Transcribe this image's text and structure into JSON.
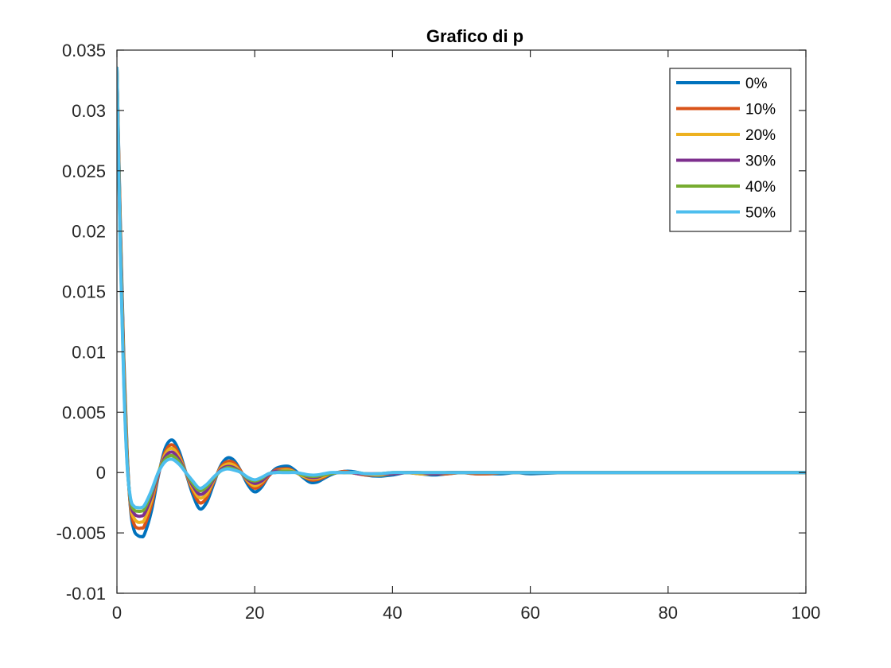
{
  "chart_data": {
    "type": "line",
    "title": "Grafico di p",
    "xlabel": "",
    "ylabel": "",
    "xlim": [
      0,
      100
    ],
    "ylim": [
      -0.01,
      0.035
    ],
    "x_ticks": [
      0,
      20,
      40,
      60,
      80,
      100
    ],
    "x_tick_labels": [
      "0",
      "20",
      "40",
      "60",
      "80",
      "100"
    ],
    "y_ticks": [
      -0.01,
      -0.005,
      0,
      0.005,
      0.01,
      0.015,
      0.02,
      0.025,
      0.03,
      0.035
    ],
    "y_tick_labels": [
      "-0.01",
      "-0.005",
      "0",
      "0.005",
      "0.01",
      "0.015",
      "0.02",
      "0.025",
      "0.03",
      "0.035"
    ],
    "grid": false,
    "legend_position": "top-right",
    "series": [
      {
        "name": "0%",
        "color": "#0072BD",
        "x": [
          0,
          0.5,
          1,
          1.5,
          2,
          2.5,
          3,
          3.5,
          4,
          5,
          6,
          7,
          8,
          9,
          10,
          11,
          12,
          13,
          14,
          15,
          16,
          17,
          18,
          19,
          20,
          21,
          22,
          23,
          24,
          25,
          26,
          27,
          28,
          29,
          30,
          31,
          32,
          33,
          34,
          35,
          36,
          38,
          40,
          42,
          44,
          46,
          48,
          50,
          52,
          54,
          56,
          58,
          60,
          65,
          70,
          75,
          80,
          85,
          90,
          95,
          100
        ],
        "values": [
          0.0335,
          0.0205,
          0.0095,
          0.0015,
          -0.0032,
          -0.0048,
          -0.0052,
          -0.0053,
          -0.0051,
          -0.0032,
          -0.0003,
          0.002,
          0.0027,
          0.0018,
          0.0,
          -0.0018,
          -0.003,
          -0.0025,
          -0.001,
          0.0005,
          0.0012,
          0.001,
          0.0001,
          -0.001,
          -0.0016,
          -0.0012,
          -0.0003,
          0.0003,
          0.0005,
          0.0005,
          0.0001,
          -0.0004,
          -0.0008,
          -0.0008,
          -0.0005,
          -0.0002,
          0.0,
          0.0001,
          0.0001,
          0.0,
          -0.0002,
          -0.0003,
          -0.0002,
          0.0,
          -0.0001,
          -0.0002,
          -0.0001,
          0.0,
          -0.0001,
          -0.0001,
          -0.0001,
          0.0,
          -0.0001,
          0.0,
          0.0,
          0.0,
          0.0,
          0.0,
          0.0,
          0.0,
          0.0
        ]
      },
      {
        "name": "10%",
        "color": "#D95319",
        "x": [
          0,
          0.5,
          1,
          1.5,
          2,
          2.5,
          3,
          3.5,
          4,
          5,
          6,
          7,
          8,
          9,
          10,
          11,
          12,
          13,
          14,
          15,
          16,
          17,
          18,
          19,
          20,
          21,
          22,
          23,
          24,
          25,
          26,
          27,
          28,
          29,
          30,
          31,
          32,
          33,
          34,
          35,
          36,
          38,
          40,
          42,
          44,
          46,
          48,
          50,
          52,
          54,
          56,
          58,
          60,
          65,
          70,
          75,
          80,
          85,
          90,
          95,
          100
        ],
        "values": [
          0.0335,
          0.02,
          0.009,
          0.0012,
          -0.003,
          -0.0043,
          -0.0046,
          -0.0046,
          -0.0044,
          -0.0027,
          -0.0002,
          0.0017,
          0.0023,
          0.0015,
          0.0,
          -0.0015,
          -0.0025,
          -0.0021,
          -0.0008,
          0.0004,
          0.0009,
          0.0008,
          0.0001,
          -0.0008,
          -0.0013,
          -0.001,
          -0.0003,
          0.0002,
          0.0003,
          0.0003,
          0.0,
          -0.0003,
          -0.0006,
          -0.0006,
          -0.0004,
          -0.0001,
          0.0,
          0.0001,
          0.0,
          -0.0001,
          -0.0002,
          -0.0002,
          -0.0001,
          0.0,
          -0.0001,
          -0.0001,
          -0.0001,
          0.0,
          -0.0001,
          -0.0001,
          0.0,
          0.0,
          0.0,
          0.0,
          0.0,
          0.0,
          0.0,
          0.0,
          0.0,
          0.0,
          0.0
        ]
      },
      {
        "name": "20%",
        "color": "#EDB120",
        "x": [
          0,
          0.5,
          1,
          1.5,
          2,
          2.5,
          3,
          3.5,
          4,
          5,
          6,
          7,
          8,
          9,
          10,
          11,
          12,
          13,
          14,
          15,
          16,
          17,
          18,
          19,
          20,
          21,
          22,
          23,
          24,
          25,
          26,
          27,
          28,
          29,
          30,
          31,
          32,
          33,
          34,
          35,
          36,
          38,
          40,
          42,
          44,
          46,
          48,
          50,
          52,
          54,
          56,
          58,
          60,
          65,
          70,
          75,
          80,
          85,
          90,
          95,
          100
        ],
        "values": [
          0.0335,
          0.0195,
          0.0085,
          0.001,
          -0.0028,
          -0.0038,
          -0.0041,
          -0.0041,
          -0.0039,
          -0.0023,
          -0.0001,
          0.0015,
          0.002,
          0.0013,
          0.0,
          -0.0013,
          -0.0021,
          -0.0018,
          -0.0007,
          0.0003,
          0.0007,
          0.0006,
          0.0,
          -0.0007,
          -0.0011,
          -0.0008,
          -0.0002,
          0.0001,
          0.0002,
          0.0002,
          0.0,
          -0.0003,
          -0.0005,
          -0.0005,
          -0.0003,
          -0.0001,
          0.0,
          0.0,
          0.0,
          -0.0001,
          -0.0001,
          -0.0002,
          -0.0001,
          0.0,
          -0.0001,
          -0.0001,
          0.0,
          0.0,
          0.0,
          0.0,
          0.0,
          0.0,
          0.0,
          0.0,
          0.0,
          0.0,
          0.0,
          0.0,
          0.0,
          0.0,
          0.0
        ]
      },
      {
        "name": "30%",
        "color": "#7E2F8E",
        "x": [
          0,
          0.5,
          1,
          1.5,
          2,
          2.5,
          3,
          3.5,
          4,
          5,
          6,
          7,
          8,
          9,
          10,
          11,
          12,
          13,
          14,
          15,
          16,
          17,
          18,
          19,
          20,
          21,
          22,
          23,
          24,
          25,
          26,
          27,
          28,
          29,
          30,
          31,
          32,
          33,
          34,
          35,
          36,
          38,
          40,
          42,
          44,
          46,
          48,
          50,
          52,
          54,
          56,
          58,
          60,
          65,
          70,
          75,
          80,
          85,
          90,
          95,
          100
        ],
        "values": [
          0.0335,
          0.019,
          0.008,
          0.0008,
          -0.0026,
          -0.0034,
          -0.0036,
          -0.0036,
          -0.0034,
          -0.002,
          -0.0001,
          0.0013,
          0.0017,
          0.0011,
          0.0,
          -0.0011,
          -0.0018,
          -0.0015,
          -0.0006,
          0.0002,
          0.0005,
          0.0004,
          0.0,
          -0.0006,
          -0.0009,
          -0.0007,
          -0.0002,
          0.0001,
          0.0001,
          0.0001,
          0.0,
          -0.0002,
          -0.0004,
          -0.0004,
          -0.0002,
          -0.0001,
          0.0,
          0.0,
          0.0,
          -0.0001,
          -0.0001,
          -0.0001,
          -0.0001,
          0.0,
          0.0,
          -0.0001,
          0.0,
          0.0,
          0.0,
          0.0,
          0.0,
          0.0,
          0.0,
          0.0,
          0.0,
          0.0,
          0.0,
          0.0,
          0.0,
          0.0,
          0.0
        ]
      },
      {
        "name": "40%",
        "color": "#77AC30",
        "x": [
          0,
          0.5,
          1,
          1.5,
          2,
          2.5,
          3,
          3.5,
          4,
          5,
          6,
          7,
          8,
          9,
          10,
          11,
          12,
          13,
          14,
          15,
          16,
          17,
          18,
          19,
          20,
          21,
          22,
          23,
          24,
          25,
          26,
          27,
          28,
          29,
          30,
          31,
          32,
          33,
          34,
          35,
          36,
          38,
          40,
          42,
          44,
          46,
          48,
          50,
          52,
          54,
          56,
          58,
          60,
          65,
          70,
          75,
          80,
          85,
          90,
          95,
          100
        ],
        "values": [
          0.0335,
          0.0185,
          0.0076,
          0.0006,
          -0.0024,
          -0.0031,
          -0.0032,
          -0.0032,
          -0.003,
          -0.0017,
          0.0,
          0.0011,
          0.0014,
          0.0009,
          0.0,
          -0.0009,
          -0.0015,
          -0.0012,
          -0.0005,
          0.0001,
          0.0004,
          0.0003,
          0.0,
          -0.0005,
          -0.0007,
          -0.0005,
          -0.0001,
          0.0,
          0.0001,
          0.0001,
          0.0,
          -0.0002,
          -0.0003,
          -0.0003,
          -0.0002,
          -0.0001,
          0.0,
          0.0,
          0.0,
          0.0,
          -0.0001,
          -0.0001,
          0.0,
          0.0,
          0.0,
          0.0,
          0.0,
          0.0,
          0.0,
          0.0,
          0.0,
          0.0,
          0.0,
          0.0,
          0.0,
          0.0,
          0.0,
          0.0,
          0.0,
          0.0,
          0.0
        ]
      },
      {
        "name": "50%",
        "color": "#4DBEEE",
        "x": [
          0,
          0.5,
          1,
          1.5,
          2,
          2.5,
          3,
          3.5,
          4,
          5,
          6,
          7,
          8,
          9,
          10,
          11,
          12,
          13,
          14,
          15,
          16,
          17,
          18,
          19,
          20,
          21,
          22,
          23,
          24,
          25,
          26,
          27,
          28,
          29,
          30,
          31,
          32,
          33,
          34,
          35,
          36,
          38,
          40,
          42,
          44,
          46,
          48,
          50,
          52,
          54,
          56,
          58,
          60,
          65,
          70,
          75,
          80,
          85,
          90,
          95,
          100
        ],
        "values": [
          0.0335,
          0.018,
          0.0072,
          0.0004,
          -0.0022,
          -0.0028,
          -0.0029,
          -0.0029,
          -0.0027,
          -0.0015,
          0.0,
          0.0009,
          0.0011,
          0.0007,
          0.0,
          -0.0007,
          -0.0013,
          -0.001,
          -0.0004,
          0.0001,
          0.0003,
          0.0002,
          0.0,
          -0.0004,
          -0.0006,
          -0.0004,
          -0.0001,
          0.0,
          0.0,
          0.0,
          0.0,
          -0.0001,
          -0.0002,
          -0.0002,
          -0.0001,
          0.0,
          0.0,
          0.0,
          0.0,
          0.0,
          -0.0001,
          -0.0001,
          0.0,
          0.0,
          0.0,
          0.0,
          0.0,
          0.0,
          0.0,
          0.0,
          0.0,
          0.0,
          0.0,
          0.0,
          0.0,
          0.0,
          0.0,
          0.0,
          0.0,
          0.0,
          0.0
        ]
      }
    ]
  }
}
